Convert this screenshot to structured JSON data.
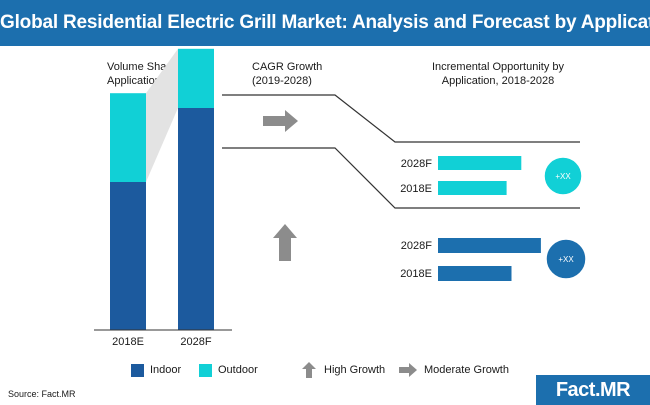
{
  "header": {
    "title": "Global Residential Electric Grill Market: Analysis and Forecast by Application"
  },
  "labels": {
    "volume_share": "Volume Share by Application",
    "cagr": "CAGR Growth (2019-2028)",
    "incremental": "Incremental Opportunity by Application, 2018-2028"
  },
  "colors": {
    "indoor": "#1c5a9e",
    "outdoor": "#11d0d6",
    "arrow": "#8c8c8c",
    "brand": "#1c6fae"
  },
  "chart_data": [
    {
      "type": "bar",
      "stacked": true,
      "title": "Volume Share by Application",
      "categories": [
        "2018E",
        "2028F"
      ],
      "series": [
        {
          "name": "Indoor",
          "values": [
            50,
            75
          ]
        },
        {
          "name": "Outdoor",
          "values": [
            30,
            20
          ]
        }
      ],
      "ylim": [
        0,
        100
      ]
    },
    {
      "type": "bar",
      "orientation": "horizontal",
      "title": "Incremental Opportunity by Application, 2018-2028",
      "segment": "Outdoor",
      "categories": [
        "2028F",
        "2018E"
      ],
      "values": [
        85,
        70
      ],
      "badge": "+XX",
      "xlim": [
        0,
        100
      ]
    },
    {
      "type": "bar",
      "orientation": "horizontal",
      "segment": "Indoor",
      "categories": [
        "2028F",
        "2018E"
      ],
      "values": [
        105,
        75
      ],
      "badge": "+XX",
      "xlim": [
        0,
        100
      ]
    }
  ],
  "legend": {
    "indoor": "Indoor",
    "outdoor": "Outdoor",
    "high_growth": "High Growth",
    "moderate_growth": "Moderate Growth"
  },
  "source": "Source: Fact.MR",
  "logo": "Fact.MR"
}
